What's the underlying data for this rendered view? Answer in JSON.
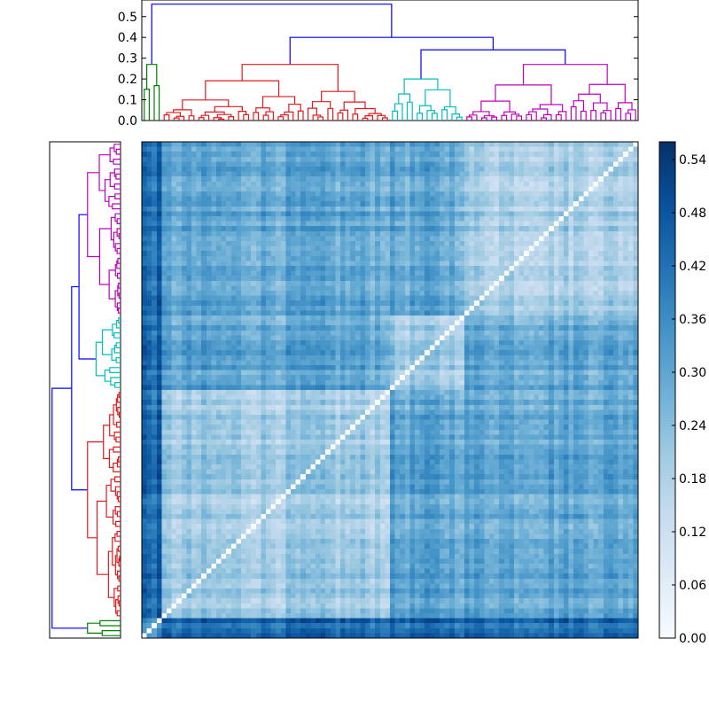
{
  "chart_data": [
    {
      "type": "dendrogram",
      "orientation": "top",
      "ylim": [
        0.0,
        0.58
      ],
      "yticks": [
        "0.0",
        "0.1",
        "0.2",
        "0.3",
        "0.4",
        "0.5"
      ],
      "cluster_colors": [
        "#008000",
        "#e31a1c",
        "#00bfbf",
        "#bf00bf"
      ],
      "link_color": "#0000ff",
      "merge_heights": {
        "root": 0.56,
        "rest": 0.4,
        "red_vs_right": 0.4,
        "cyan_vs_magenta": 0.34,
        "red": 0.27,
        "cyan": 0.2,
        "magenta": 0.27,
        "green": 0.27
      }
    },
    {
      "type": "dendrogram",
      "orientation": "left",
      "note": "mirror of the top dendrogram, drawn along the rows"
    },
    {
      "type": "heatmap",
      "matrix_size": 100,
      "cluster_sizes": [
        4,
        46,
        15,
        35
      ],
      "diagonal_value": 0.0,
      "typical_range": [
        0.06,
        0.4
      ],
      "colormap": [
        "#f7fbff",
        "#deebf7",
        "#c6dbef",
        "#9ecae1",
        "#6baed6",
        "#4292c6",
        "#2171b5",
        "#08519c",
        "#08306b"
      ],
      "colorbar": {
        "min": 0.0,
        "max": 0.56,
        "ticks": [
          "0.00",
          "0.06",
          "0.12",
          "0.18",
          "0.24",
          "0.30",
          "0.36",
          "0.42",
          "0.48",
          "0.54"
        ]
      }
    }
  ]
}
